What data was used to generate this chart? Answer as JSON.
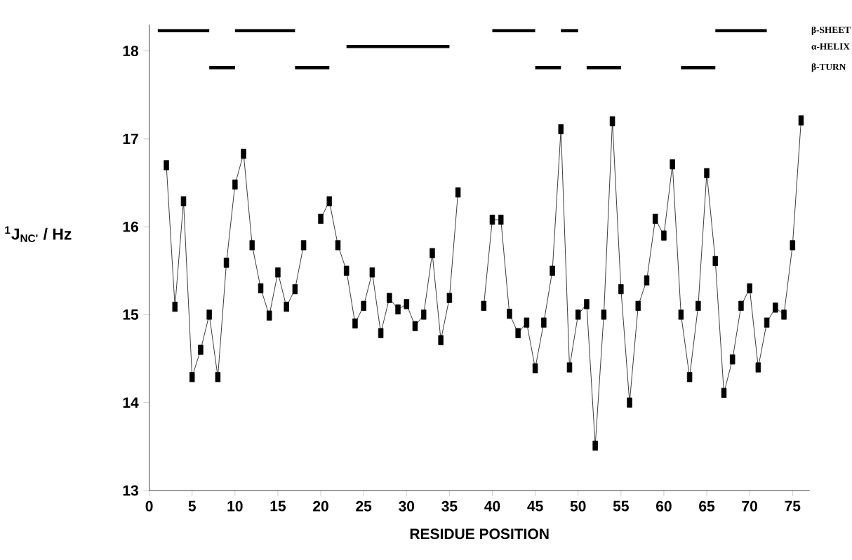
{
  "chart_data": {
    "type": "line",
    "xlabel": "RESIDUE POSITION",
    "ylabel": "$^{1}$J$_{NC'}$ / Hz",
    "xlim": [
      0,
      77
    ],
    "ylim": [
      13,
      18.3
    ],
    "xticks": [
      0,
      5,
      10,
      15,
      20,
      25,
      30,
      35,
      40,
      45,
      50,
      55,
      60,
      65,
      70,
      75
    ],
    "yticks": [
      13,
      14,
      15,
      16,
      17,
      18
    ],
    "grid": false,
    "legend": false,
    "marker": "square",
    "series": [
      {
        "color": "#000000",
        "x": [
          2,
          3,
          4,
          5,
          6,
          7,
          8,
          9,
          10,
          11,
          12,
          13,
          14,
          15,
          16,
          17,
          18,
          19,
          20,
          21,
          22,
          23,
          24,
          25,
          26,
          27,
          28,
          29,
          30,
          31,
          32,
          33,
          34,
          35,
          36,
          37,
          38,
          39,
          40,
          41,
          42,
          43,
          44,
          45,
          46,
          47,
          48,
          49,
          50,
          51,
          52,
          53,
          54,
          55,
          56,
          57,
          58,
          59,
          60,
          61,
          62,
          63,
          64,
          65,
          66,
          67,
          68,
          69,
          70,
          71,
          72,
          73,
          74,
          75,
          76
        ],
        "values": [
          16.7,
          15.09,
          16.29,
          14.29,
          14.6,
          15.0,
          14.29,
          15.59,
          16.48,
          16.83,
          15.79,
          15.3,
          14.99,
          15.48,
          15.09,
          15.29,
          15.79,
          null,
          16.09,
          16.29,
          15.79,
          15.5,
          14.9,
          15.1,
          15.48,
          14.79,
          15.19,
          15.06,
          15.12,
          14.87,
          15.0,
          15.7,
          14.71,
          15.19,
          16.39,
          null,
          null,
          15.1,
          16.08,
          16.08,
          15.01,
          14.79,
          14.91,
          14.39,
          14.91,
          15.5,
          17.11,
          14.4,
          15.0,
          15.12,
          13.51,
          15.0,
          17.2,
          15.29,
          14.0,
          15.1,
          15.39,
          16.09,
          15.9,
          16.71,
          15.0,
          14.29,
          15.1,
          16.61,
          15.61,
          14.11,
          14.49,
          15.1,
          15.3,
          14.4,
          14.91,
          15.08,
          15.0,
          15.79,
          17.21
        ]
      },
      {
        "name": "β-SHEET",
        "color": "#000000",
        "marker": "none",
        "x": [
          66,
          72
        ],
        "values": [
          18.23,
          18.23
        ]
      },
      {
        "color": "#000000",
        "marker": "none",
        "x": [
          1,
          7
        ],
        "values": [
          18.23,
          18.23
        ]
      },
      {
        "color": "#000000",
        "marker": "none",
        "x": [
          10,
          17
        ],
        "values": [
          18.23,
          18.23
        ]
      },
      {
        "color": "#000000",
        "marker": "none",
        "x": [
          40,
          45
        ],
        "values": [
          18.23,
          18.23
        ]
      },
      {
        "color": "#000000",
        "marker": "none",
        "x": [
          48,
          50
        ],
        "values": [
          18.23,
          18.23
        ]
      },
      {
        "name": "α-HELIX",
        "color": "#000000",
        "marker": "none",
        "x": [
          23,
          35
        ],
        "values": [
          18.05,
          18.05
        ]
      },
      {
        "name": "β-TURN",
        "color": "#000000",
        "marker": "none",
        "x": [
          62,
          66
        ],
        "values": [
          17.81,
          17.81
        ]
      },
      {
        "color": "#000000",
        "marker": "none",
        "x": [
          7,
          10
        ],
        "values": [
          17.81,
          17.81
        ]
      },
      {
        "color": "#000000",
        "marker": "none",
        "x": [
          17,
          21
        ],
        "values": [
          17.81,
          17.81
        ]
      },
      {
        "color": "#000000",
        "marker": "none",
        "x": [
          45,
          48
        ],
        "values": [
          17.81,
          17.81
        ]
      },
      {
        "color": "#000000",
        "marker": "none",
        "x": [
          51,
          55
        ],
        "values": [
          17.81,
          17.81
        ]
      }
    ]
  }
}
